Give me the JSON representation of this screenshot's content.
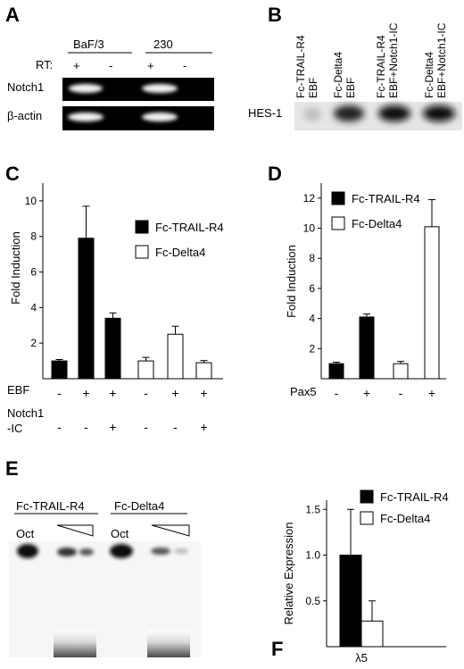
{
  "panel_A": {
    "letter": "A",
    "groups": [
      "BaF/3",
      "230"
    ],
    "rt_label": "RT:",
    "rt_signs": [
      "+",
      "-",
      "+",
      "-"
    ],
    "rows": [
      "Notch1",
      "β-actin"
    ]
  },
  "panel_B": {
    "letter": "B",
    "lanes": [
      [
        "Fc-TRAIL-R4",
        "EBF"
      ],
      [
        "Fc-Delta4",
        "EBF"
      ],
      [
        "Fc-TRAIL-R4",
        "EBF+Notch1-IC"
      ],
      [
        "Fc-Delta4",
        "EBF+Notch1-IC"
      ]
    ],
    "row_label": "HES-1"
  },
  "panel_E": {
    "letter": "E",
    "groups": [
      "Fc-TRAIL-R4",
      "Fc-Delta4"
    ],
    "oct_label": "Oct"
  },
  "chart_data": [
    {
      "panel": "C",
      "type": "bar",
      "ylabel": "Fold Induction",
      "ylim": [
        0,
        11
      ],
      "yticks": [
        2,
        4,
        6,
        8,
        10
      ],
      "series_names": [
        "Fc-TRAIL-R4",
        "Fc-Delta4"
      ],
      "series_colors": [
        "#000000",
        "#ffffff"
      ],
      "bars": [
        {
          "series": 0,
          "value": 1.0,
          "error": 0.08
        },
        {
          "series": 0,
          "value": 7.9,
          "error": 1.8
        },
        {
          "series": 0,
          "value": 3.4,
          "error": 0.3
        },
        {
          "series": 1,
          "value": 1.0,
          "error": 0.2
        },
        {
          "series": 1,
          "value": 2.5,
          "error": 0.45
        },
        {
          "series": 1,
          "value": 0.9,
          "error": 0.12
        }
      ],
      "row_labels": [
        "EBF",
        "Notch1\n-IC"
      ],
      "row_signs": [
        [
          "-",
          "+",
          "+",
          "-",
          "+",
          "+"
        ],
        [
          "-",
          "-",
          "+",
          "-",
          "-",
          "+"
        ]
      ]
    },
    {
      "panel": "D",
      "type": "bar",
      "ylabel": "Fold Induction",
      "ylim": [
        0,
        13
      ],
      "yticks": [
        2,
        4,
        6,
        8,
        10,
        12
      ],
      "series_names": [
        "Fc-TRAIL-R4",
        "Fc-Delta4"
      ],
      "series_colors": [
        "#000000",
        "#ffffff"
      ],
      "bars": [
        {
          "series": 0,
          "value": 1.0,
          "error": 0.1
        },
        {
          "series": 0,
          "value": 4.1,
          "error": 0.2
        },
        {
          "series": 1,
          "value": 1.0,
          "error": 0.15
        },
        {
          "series": 1,
          "value": 10.1,
          "error": 1.8
        }
      ],
      "row_labels": [
        "Pax5"
      ],
      "row_signs": [
        [
          "-",
          "+",
          "-",
          "+"
        ]
      ]
    },
    {
      "panel": "F",
      "type": "bar",
      "ylabel": "Relative Expression",
      "ylim": [
        0,
        1.6
      ],
      "yticks": [
        0.5,
        1.0,
        1.5
      ],
      "ytick_labels": [
        "0.5",
        "1.0",
        "1.5"
      ],
      "categories": [
        "λ5"
      ],
      "series_names": [
        "Fc-TRAIL-R4",
        "Fc-Delta4"
      ],
      "series_colors": [
        "#000000",
        "#ffffff"
      ],
      "bars": [
        {
          "series": 0,
          "value": 1.0,
          "error": 0.5
        },
        {
          "series": 1,
          "value": 0.28,
          "error": 0.22
        }
      ]
    }
  ]
}
